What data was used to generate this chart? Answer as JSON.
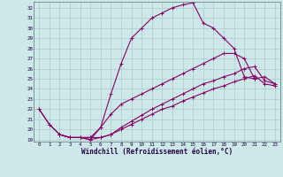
{
  "xlabel": "Windchill (Refroidissement éolien,°C)",
  "bg_color": "#cce8e8",
  "grid_color": "#aacccc",
  "line_color": "#880066",
  "xmin": 0,
  "xmax": 23,
  "ymin": 19,
  "ymax": 32,
  "series": [
    {
      "x": [
        0,
        1,
        2,
        3,
        4,
        5,
        6,
        7,
        8,
        9,
        10,
        11,
        12,
        13,
        14,
        15,
        16,
        17,
        18,
        19,
        20,
        21
      ],
      "y": [
        22,
        20.5,
        19.5,
        19.2,
        19.2,
        19.0,
        20.2,
        23.5,
        26.5,
        29.0,
        30.0,
        31.0,
        31.5,
        32.0,
        32.3,
        32.5,
        30.5,
        30.0,
        29.0,
        28.0,
        25.2,
        25.0
      ]
    },
    {
      "x": [
        2,
        3,
        4,
        5,
        6,
        7,
        8,
        9,
        10,
        11,
        12,
        13,
        14,
        15,
        16,
        17,
        18,
        19,
        20,
        21,
        22,
        23
      ],
      "y": [
        19.5,
        19.2,
        19.2,
        19.2,
        20.2,
        21.5,
        22.5,
        23.0,
        23.5,
        24.0,
        24.5,
        25.0,
        25.5,
        26.0,
        26.5,
        27.0,
        27.5,
        27.5,
        27.0,
        25.0,
        25.2,
        24.5
      ]
    },
    {
      "x": [
        0,
        1,
        2,
        3,
        4,
        5,
        6,
        7,
        8,
        9,
        10,
        11,
        12,
        13,
        14,
        15,
        16,
        17,
        18,
        19,
        20,
        21,
        22,
        23
      ],
      "y": [
        22.0,
        20.5,
        19.5,
        19.2,
        19.2,
        19.0,
        19.2,
        19.5,
        20.2,
        20.8,
        21.4,
        22.0,
        22.5,
        23.0,
        23.5,
        24.0,
        24.5,
        24.8,
        25.2,
        25.5,
        26.0,
        26.2,
        24.8,
        24.5
      ]
    },
    {
      "x": [
        2,
        3,
        4,
        5,
        6,
        7,
        8,
        9,
        10,
        11,
        12,
        13,
        14,
        15,
        16,
        17,
        18,
        19,
        20,
        21,
        22,
        23
      ],
      "y": [
        19.5,
        19.2,
        19.2,
        19.2,
        19.2,
        19.5,
        20.0,
        20.5,
        21.0,
        21.5,
        22.0,
        22.3,
        22.8,
        23.2,
        23.6,
        24.0,
        24.3,
        24.7,
        25.0,
        25.3,
        24.5,
        24.3
      ]
    }
  ]
}
